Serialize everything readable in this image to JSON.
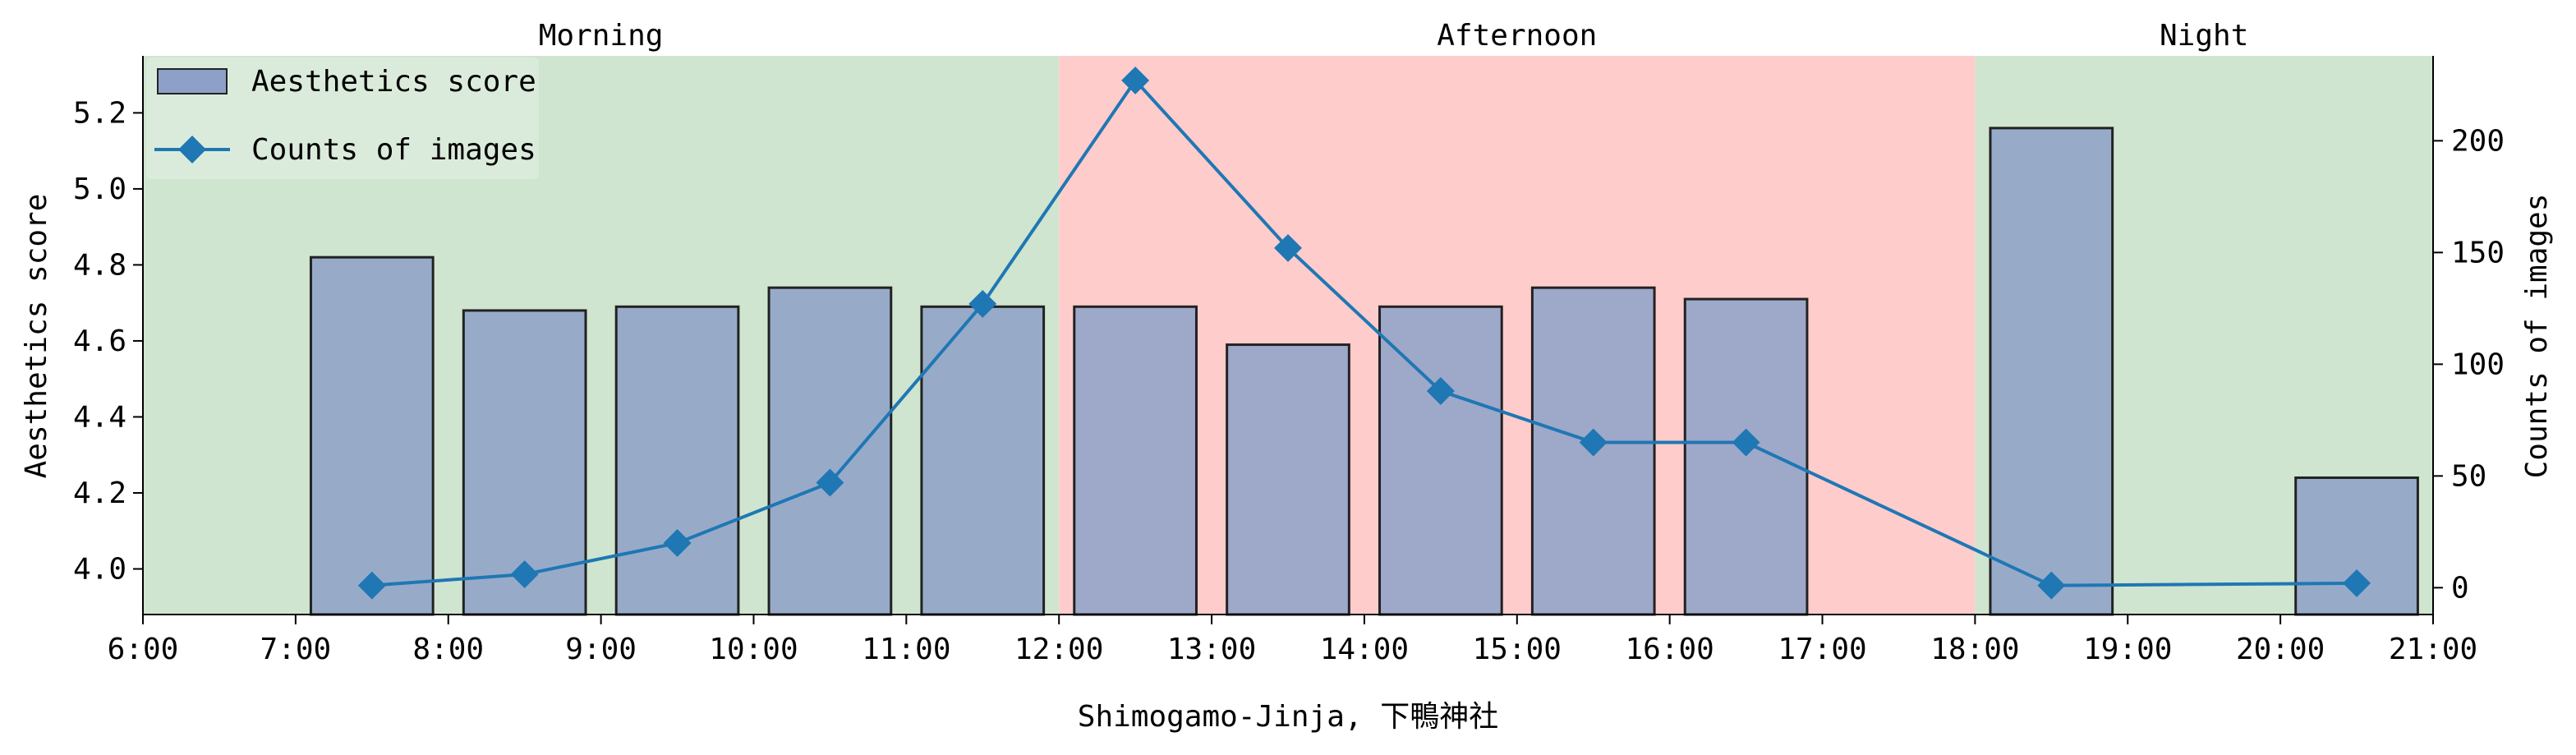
{
  "chart_data": {
    "type": "bar",
    "xlabel": "Shimogamo-Jinja, 下鴨神社",
    "ylabel_left": "Aesthetics score",
    "ylabel_right": "Counts of images",
    "x_range": [
      6,
      21
    ],
    "x_ticks": [
      6,
      7,
      8,
      9,
      10,
      11,
      12,
      13,
      14,
      15,
      16,
      17,
      18,
      19,
      20,
      21
    ],
    "x_tick_labels": [
      "6:00",
      "7:00",
      "8:00",
      "9:00",
      "10:00",
      "11:00",
      "12:00",
      "13:00",
      "14:00",
      "15:00",
      "16:00",
      "17:00",
      "18:00",
      "19:00",
      "20:00",
      "21:00"
    ],
    "ylim_left": [
      3.88,
      5.35
    ],
    "y_ticks_left": [
      4.0,
      4.2,
      4.4,
      4.6,
      4.8,
      5.0,
      5.2
    ],
    "y_tick_labels_left": [
      "4.0",
      "4.2",
      "4.4",
      "4.6",
      "4.8",
      "5.0",
      "5.2"
    ],
    "ylim_right": [
      -12,
      238
    ],
    "y_ticks_right": [
      0,
      50,
      100,
      150,
      200
    ],
    "y_tick_labels_right": [
      "0",
      "50",
      "100",
      "150",
      "200"
    ],
    "periods": [
      {
        "label": "Morning",
        "start": 6,
        "end": 12,
        "color": "#cfe5cf"
      },
      {
        "label": "Afternoon",
        "start": 12,
        "end": 18,
        "color": "#ffcccc"
      },
      {
        "label": "Night",
        "start": 18,
        "end": 21,
        "color": "#cfe5cf"
      }
    ],
    "series": [
      {
        "name": "Aesthetics score",
        "kind": "bar",
        "axis": "left",
        "color": "#8da1c8",
        "x": [
          7.5,
          8.5,
          9.5,
          10.5,
          11.5,
          12.5,
          13.5,
          14.5,
          15.5,
          16.5,
          18.5,
          20.5
        ],
        "values": [
          4.82,
          4.68,
          4.69,
          4.74,
          4.69,
          4.69,
          4.59,
          4.69,
          4.74,
          4.71,
          5.16,
          4.24
        ]
      },
      {
        "name": "Counts of images",
        "kind": "line",
        "axis": "right",
        "color": "#1f77b4",
        "x": [
          7.5,
          8.5,
          9.5,
          10.5,
          11.5,
          12.5,
          13.5,
          14.5,
          15.5,
          16.5,
          18.5,
          20.5
        ],
        "values": [
          1,
          6,
          20,
          47,
          127,
          227,
          152,
          88,
          65,
          65,
          1,
          2
        ]
      }
    ],
    "grid": false,
    "legend_position": "top-left"
  }
}
